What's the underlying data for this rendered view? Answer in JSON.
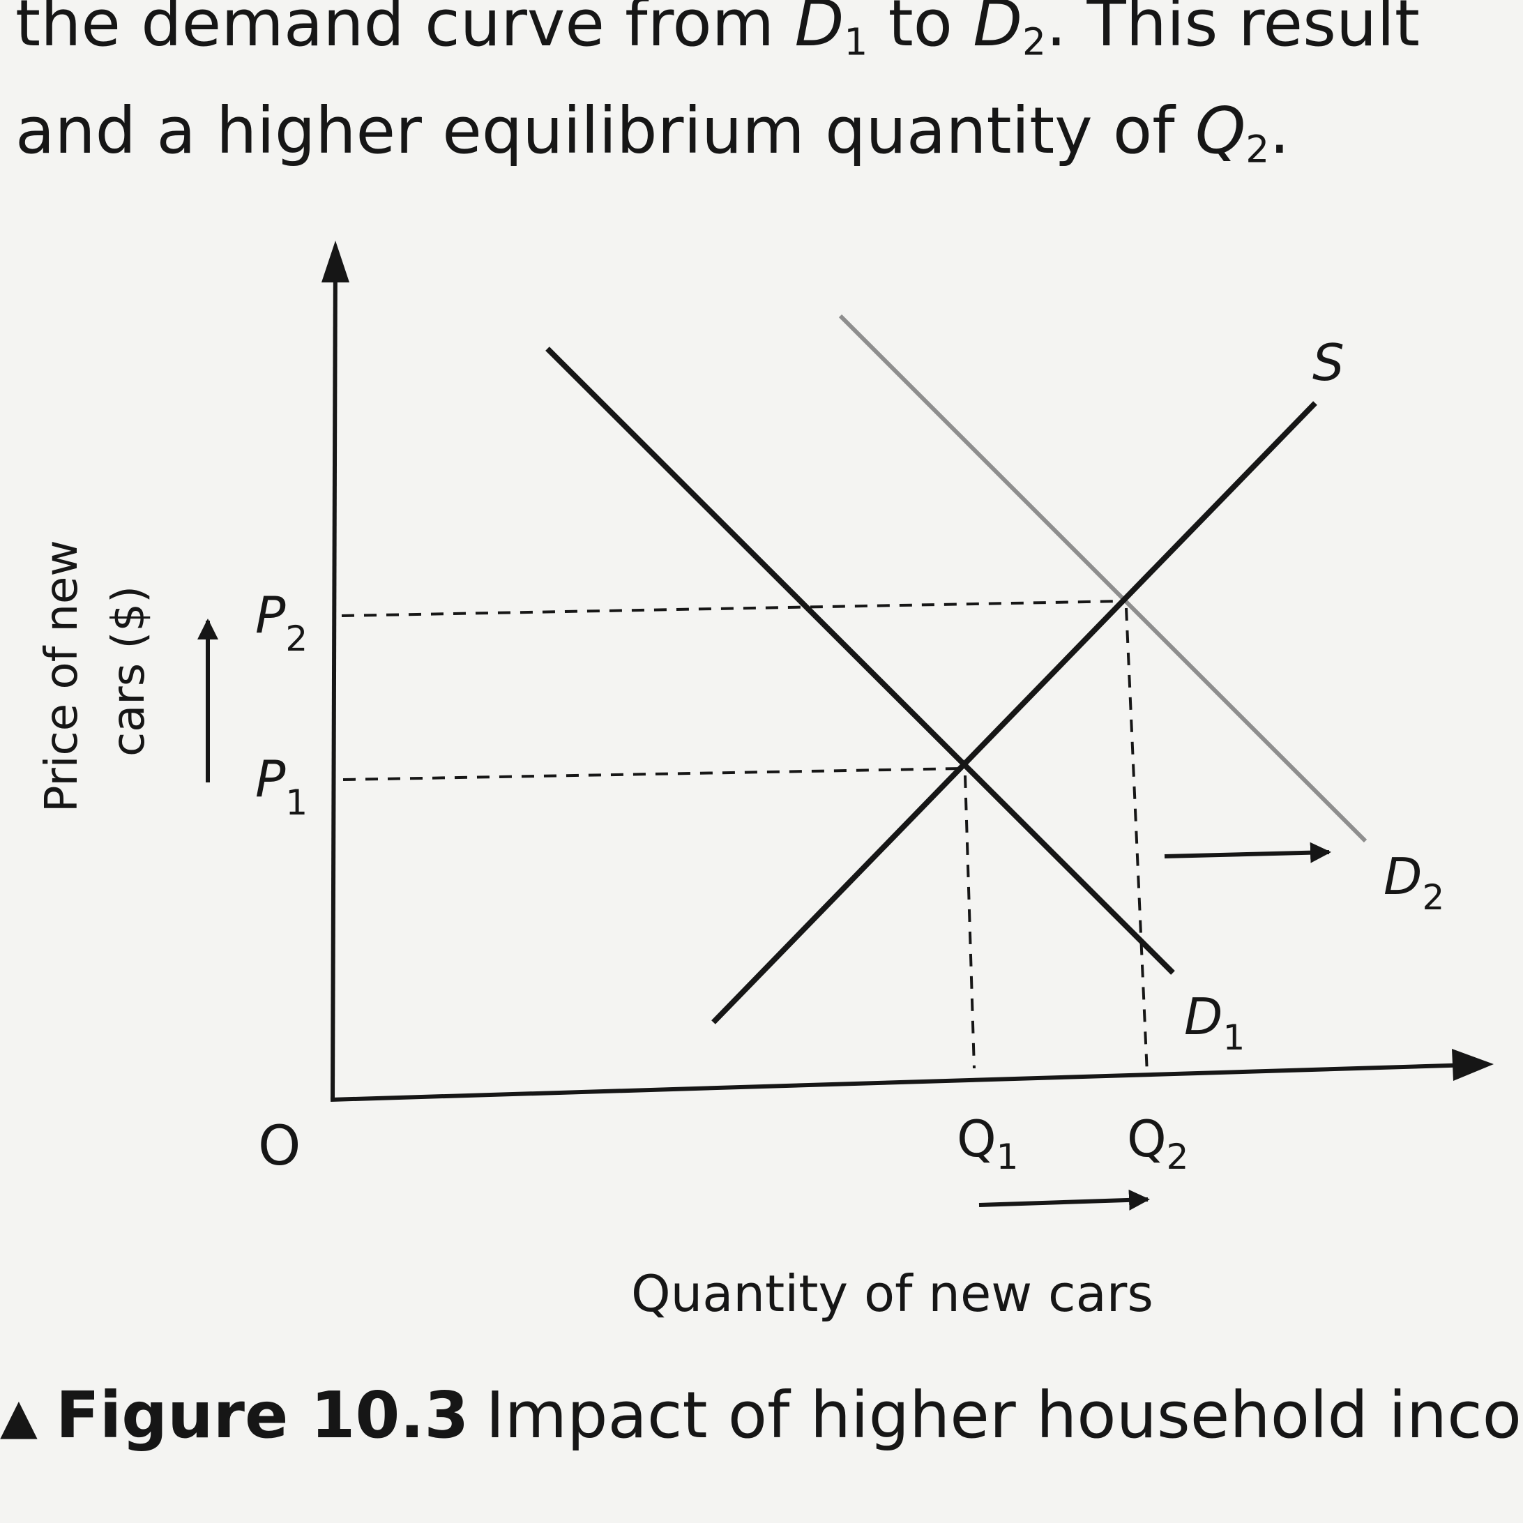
{
  "intro": {
    "line1": [
      "the demand curve from ",
      "D",
      "1",
      " to ",
      "D",
      "2",
      ". This result"
    ],
    "line2": [
      "and a higher equilibrium quantity of ",
      "Q",
      "2",
      "."
    ]
  },
  "diagram": {
    "y_axis_label_line1": "Price of new",
    "y_axis_label_line2": "cars ($)",
    "x_axis_label": "Quantity of new cars",
    "origin_label": "O",
    "curves": {
      "supply": "S",
      "demand_1": {
        "letter": "D",
        "sub": "1"
      },
      "demand_2": {
        "letter": "D",
        "sub": "2"
      }
    },
    "price_levels": [
      {
        "letter": "P",
        "sub": "1"
      },
      {
        "letter": "P",
        "sub": "2"
      }
    ],
    "quantity_levels": [
      {
        "letter": "Q",
        "sub": "1"
      },
      {
        "letter": "Q",
        "sub": "2"
      }
    ],
    "colors": {
      "ink": "#161616",
      "shifted_demand": "#8e8e8e",
      "paper": "#f4f4f2"
    }
  },
  "caption": {
    "marker": "▲",
    "label": "Figure 10.3",
    "text": "Impact of higher household incom"
  }
}
